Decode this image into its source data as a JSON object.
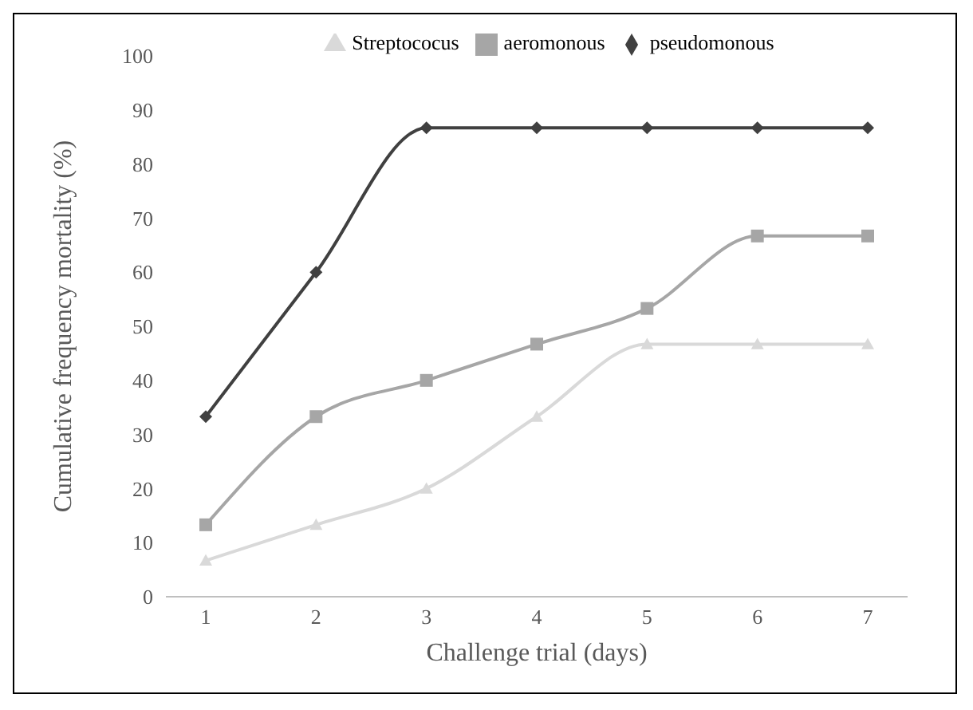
{
  "chart_data": {
    "type": "line",
    "xlabel": "Challenge trial (days)",
    "ylabel": "Cumulative frequency mortality (%)",
    "categories": [
      "1",
      "2",
      "3",
      "4",
      "5",
      "6",
      "7"
    ],
    "ylim": [
      0,
      100
    ],
    "yticks": [
      0,
      10,
      20,
      30,
      40,
      50,
      60,
      70,
      80,
      90,
      100
    ],
    "grid": false,
    "legend": "top",
    "series": [
      {
        "name": "pseudomonous",
        "color": "#404040",
        "marker": "diamond",
        "values": [
          33.3,
          60,
          86.7,
          86.7,
          86.7,
          86.7,
          86.7
        ]
      },
      {
        "name": "aeromonous",
        "color": "#a6a6a6",
        "marker": "square",
        "values": [
          13.3,
          33.3,
          40,
          46.7,
          53.3,
          66.7,
          66.7
        ]
      },
      {
        "name": "Streptococus",
        "color": "#d9d9d9",
        "marker": "triangle",
        "values": [
          6.7,
          13.3,
          20,
          33.3,
          46.7,
          46.7,
          46.7
        ]
      }
    ]
  }
}
